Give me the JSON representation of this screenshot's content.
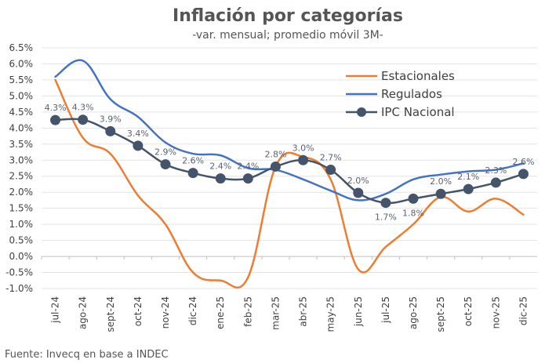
{
  "chart_data": {
    "type": "line",
    "title": "Inflación por categorías",
    "subtitle": "-var. mensual; promedio móvil 3M-",
    "source": "Fuente: Invecq en base a INDEC",
    "categories": [
      "jul-24",
      "ago-24",
      "sept-24",
      "oct-24",
      "nov-24",
      "dic-24",
      "ene-25",
      "feb-25",
      "mar-25",
      "abr-25",
      "may-25",
      "jun-25",
      "jul-25",
      "ago-25",
      "sept-25",
      "oct-25",
      "nov-25",
      "dic-25"
    ],
    "ylim": [
      -1.0,
      6.5
    ],
    "yticks": [
      "6.5%",
      "6.0%",
      "5.5%",
      "5.0%",
      "4.5%",
      "4.0%",
      "3.5%",
      "3.0%",
      "2.5%",
      "2.0%",
      "1.5%",
      "1.0%",
      "0.5%",
      "0.0%",
      "-0.5%",
      "-1.0%"
    ],
    "legend_position": "top-right",
    "series": [
      {
        "name": "Estacionales",
        "color": "#ED7D31",
        "values": [
          5.5,
          3.7,
          3.2,
          1.9,
          1.0,
          -0.5,
          -0.75,
          -0.65,
          2.8,
          3.1,
          2.4,
          -0.4,
          0.3,
          1.0,
          1.85,
          1.4,
          1.8,
          1.3
        ]
      },
      {
        "name": "Regulados",
        "color": "#4472C4",
        "values": [
          5.6,
          6.1,
          4.9,
          4.35,
          3.55,
          3.2,
          3.15,
          2.75,
          2.7,
          2.4,
          2.05,
          1.75,
          1.95,
          2.4,
          2.55,
          2.65,
          2.7,
          2.9
        ]
      },
      {
        "name": "IPC Nacional",
        "color": "#44546A",
        "marker": "circle",
        "values": [
          4.25,
          4.26,
          3.9,
          3.45,
          2.87,
          2.6,
          2.43,
          2.43,
          2.8,
          3.0,
          2.7,
          1.98,
          1.67,
          1.8,
          1.95,
          2.1,
          2.3,
          2.57
        ]
      }
    ],
    "ipc_labels": [
      "4.3%",
      "4.3%",
      "3.9%",
      "3.4%",
      "2.9%",
      "2.6%",
      "2.4%",
      "2.4%",
      "2.8%",
      "3.0%",
      "2.7%",
      "2.0%",
      "1.7%",
      "1.8%",
      "2.0%",
      "2.1%",
      "2.3%",
      "2.6%"
    ]
  }
}
